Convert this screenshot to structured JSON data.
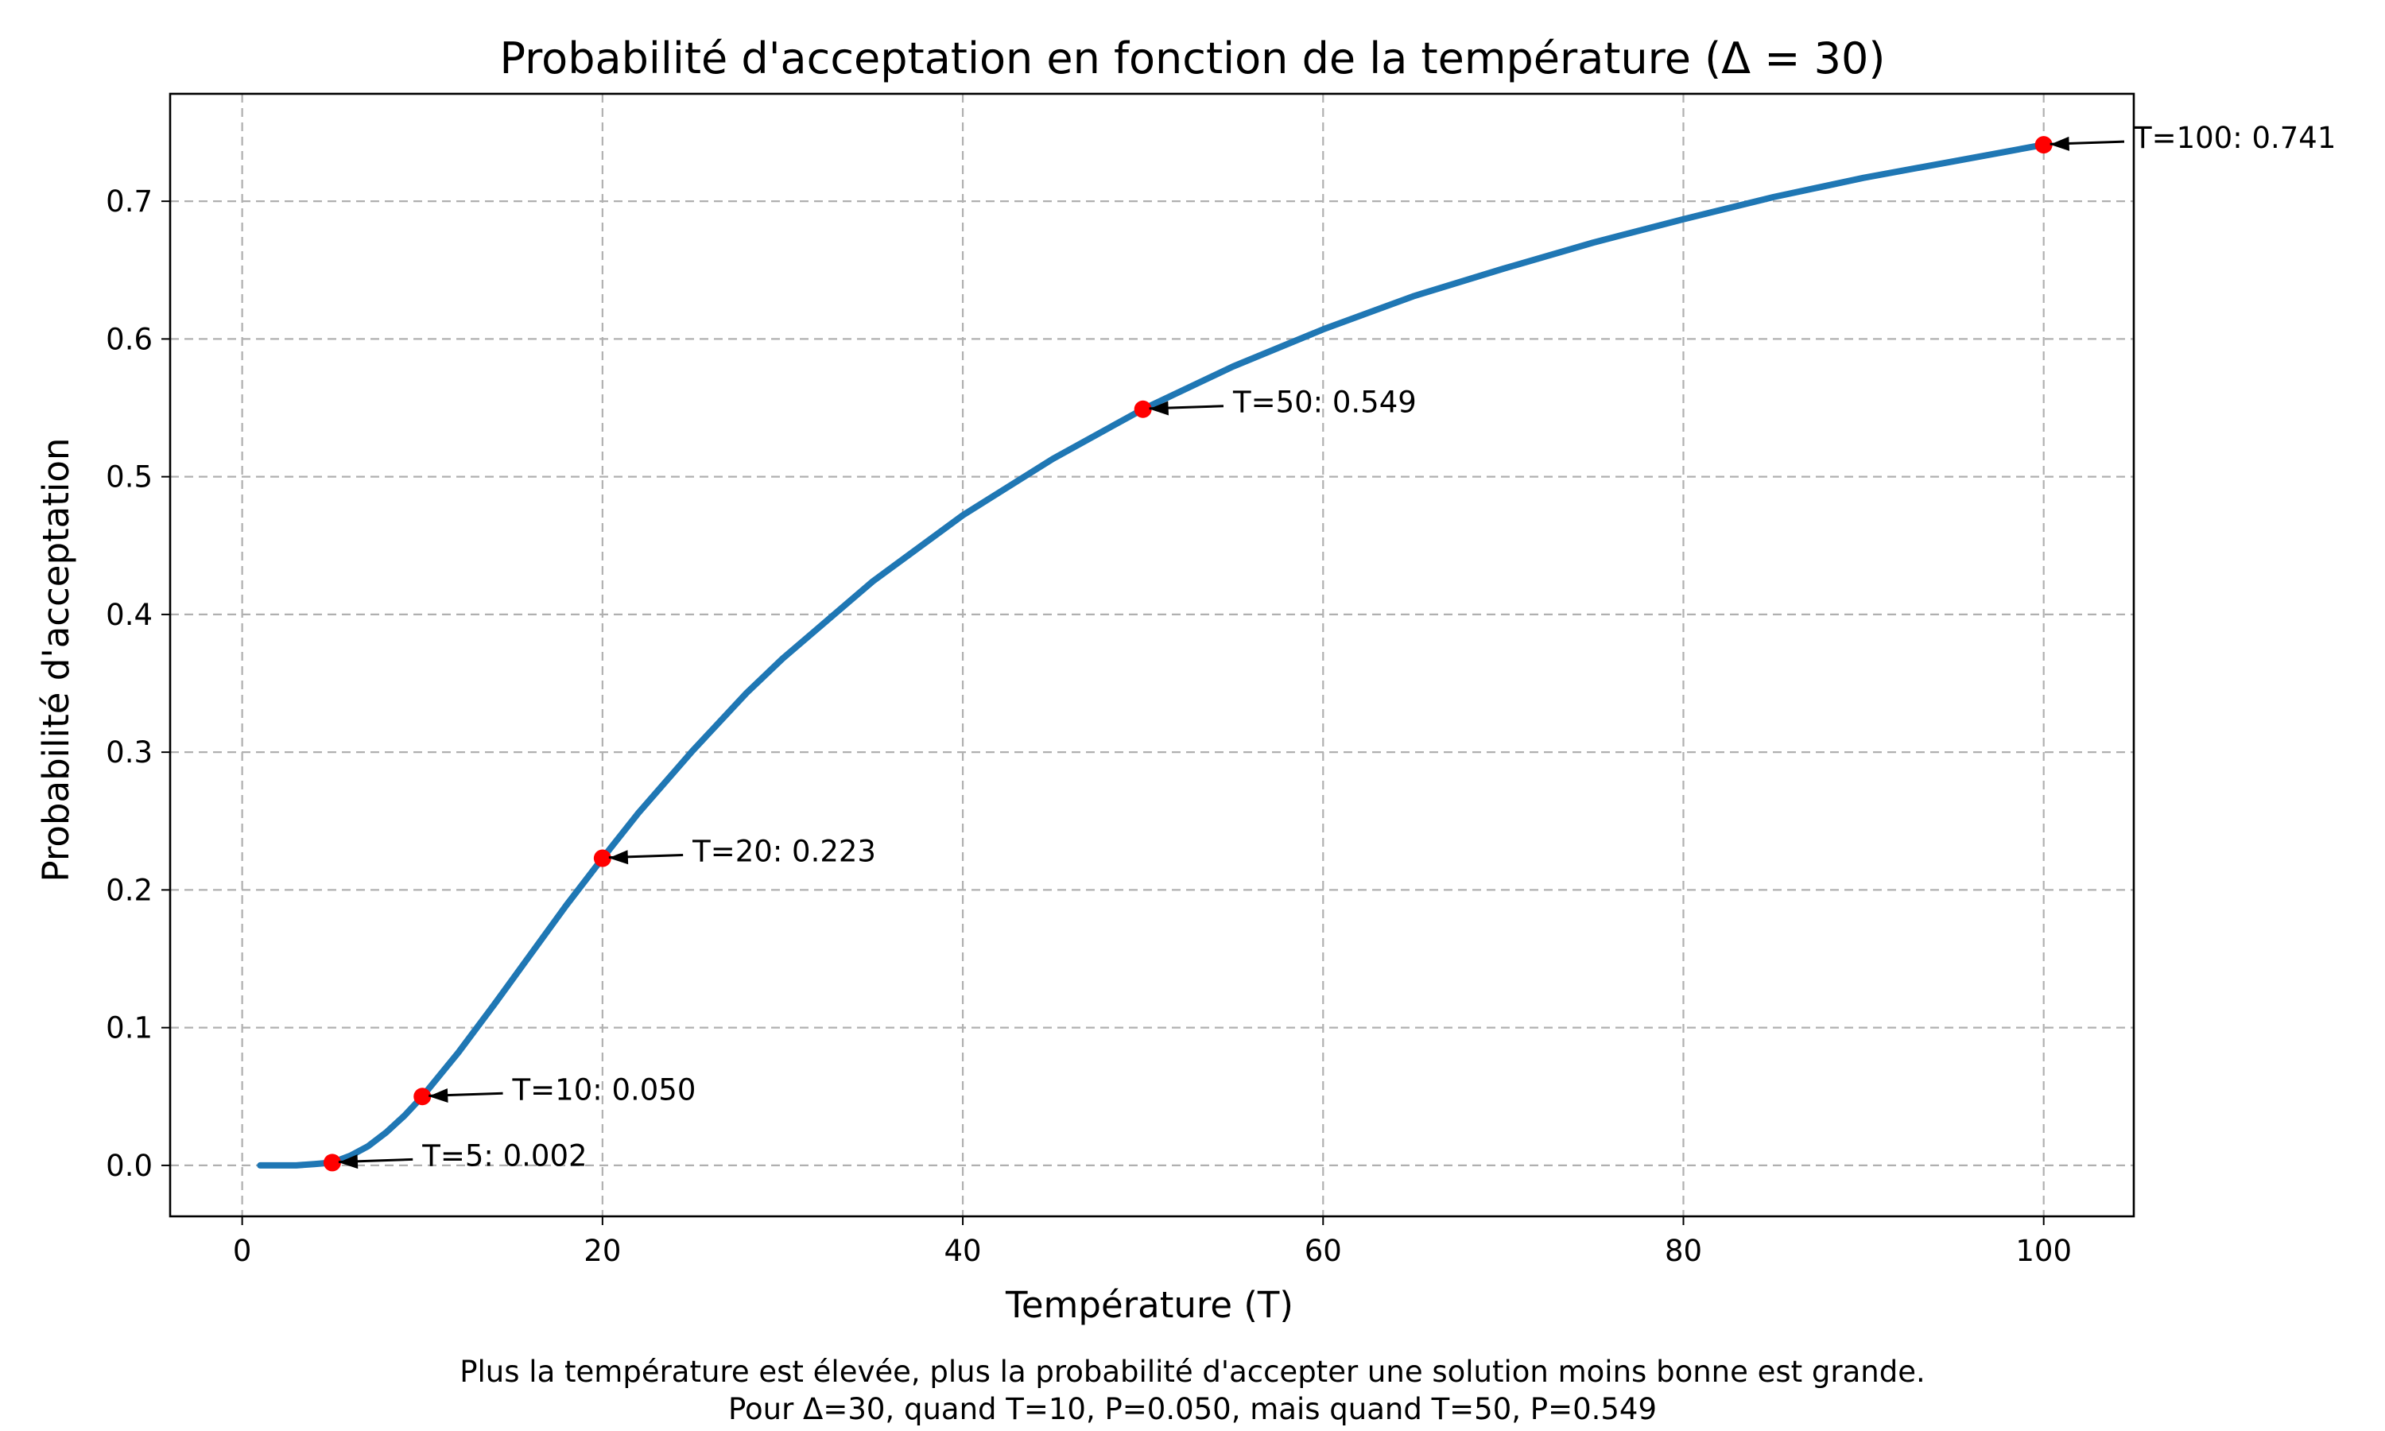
{
  "chart_data": {
    "type": "line",
    "title": "Probabilité d'acceptation en fonction de la température (Δ = 30)",
    "xlabel": "Température (T)",
    "ylabel": "Probabilité d'acceptation",
    "xlim": [
      -4,
      105
    ],
    "ylim": [
      -0.037,
      0.778
    ],
    "x_ticks": [
      0,
      20,
      40,
      60,
      80,
      100
    ],
    "x_tick_labels": [
      "0",
      "20",
      "40",
      "60",
      "80",
      "100"
    ],
    "y_ticks": [
      0.0,
      0.1,
      0.2,
      0.3,
      0.4,
      0.5,
      0.6,
      0.7
    ],
    "y_tick_labels": [
      "0.0",
      "0.1",
      "0.2",
      "0.3",
      "0.4",
      "0.5",
      "0.6",
      "0.7"
    ],
    "grid": true,
    "delta": 30,
    "series": [
      {
        "color": "#1f77b4",
        "x": [
          1,
          2,
          3,
          4,
          5,
          6,
          7,
          8,
          9,
          10,
          12,
          14,
          16,
          18,
          20,
          22,
          25,
          28,
          30,
          35,
          40,
          45,
          50,
          55,
          60,
          65,
          70,
          75,
          80,
          85,
          90,
          95,
          100
        ],
        "y": [
          0.0,
          0.0,
          0.0,
          0.001,
          0.002,
          0.007,
          0.014,
          0.024,
          0.036,
          0.05,
          0.082,
          0.117,
          0.153,
          0.189,
          0.223,
          0.256,
          0.301,
          0.343,
          0.368,
          0.424,
          0.472,
          0.513,
          0.549,
          0.58,
          0.607,
          0.631,
          0.651,
          0.67,
          0.687,
          0.703,
          0.717,
          0.729,
          0.741
        ]
      }
    ],
    "highlighted_points": [
      {
        "x": 5,
        "y": 0.002,
        "color": "#ff0000"
      },
      {
        "x": 10,
        "y": 0.05,
        "color": "#ff0000"
      },
      {
        "x": 20,
        "y": 0.223,
        "color": "#ff0000"
      },
      {
        "x": 50,
        "y": 0.549,
        "color": "#ff0000"
      },
      {
        "x": 100,
        "y": 0.741,
        "color": "#ff0000"
      }
    ],
    "annotations": [
      {
        "text": "T=5: 0.002",
        "point_x": 5,
        "point_y": 0.002,
        "text_x": 10,
        "text_y": 0.002
      },
      {
        "text": "T=10: 0.050",
        "point_x": 10,
        "point_y": 0.05,
        "text_x": 15,
        "text_y": 0.05
      },
      {
        "text": "T=20: 0.223",
        "point_x": 20,
        "point_y": 0.223,
        "text_x": 25,
        "text_y": 0.223
      },
      {
        "text": "T=50: 0.549",
        "point_x": 50,
        "point_y": 0.549,
        "text_x": 55,
        "text_y": 0.549
      },
      {
        "text": "T=100: 0.741",
        "point_x": 100,
        "point_y": 0.741,
        "text_x": 105,
        "text_y": 0.741
      }
    ],
    "caption": [
      "Plus la température est élevée, plus la probabilité d'accepter une solution moins bonne est grande.",
      "Pour Δ=30, quand T=10, P=0.050, mais quand T=50, P=0.549"
    ]
  }
}
